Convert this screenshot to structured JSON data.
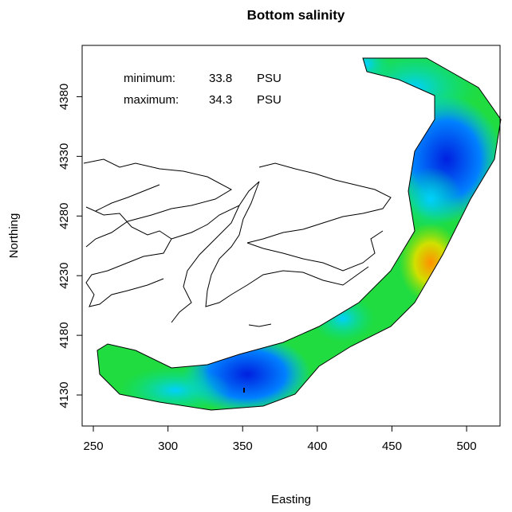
{
  "chart_data": {
    "type": "map",
    "title": "Bottom salinity",
    "xlabel": "Easting",
    "ylabel": "Northing",
    "xlim": [
      242.5,
      522.4
    ],
    "ylim": [
      4104,
      4423
    ],
    "xticks": [
      250,
      300,
      350,
      400,
      450,
      500
    ],
    "yticks": [
      4130,
      4180,
      4230,
      4280,
      4330,
      4380
    ],
    "annotations": [
      {
        "label": "minimum:",
        "value": 33.8,
        "unit": "PSU"
      },
      {
        "label": "maximum:",
        "value": 34.3,
        "unit": "PSU"
      }
    ]
  }
}
